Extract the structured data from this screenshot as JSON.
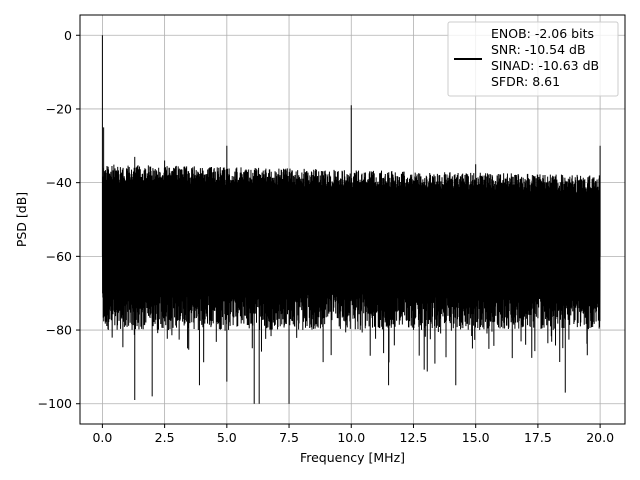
{
  "chart_data": {
    "type": "line",
    "xlabel": "Frequency [MHz]",
    "ylabel": "PSD [dB]",
    "xlim": [
      -0.9,
      21.0
    ],
    "ylim": [
      -105.5,
      5.5
    ],
    "x_ticks": [
      0.0,
      2.5,
      5.0,
      7.5,
      10.0,
      12.5,
      15.0,
      17.5,
      20.0
    ],
    "x_tick_labels": [
      "0.0",
      "2.5",
      "5.0",
      "7.5",
      "10.0",
      "12.5",
      "15.0",
      "17.5",
      "20.0"
    ],
    "y_ticks": [
      0,
      -20,
      -40,
      -60,
      -80,
      -100
    ],
    "y_tick_labels": [
      "0",
      "−20",
      "−40",
      "−60",
      "−80",
      "−100"
    ],
    "grid": true,
    "legend_position": "top-right",
    "series": [
      {
        "name": "ENOB: -2.06 bits\nSNR: -10.54 dB\nSINAD: -10.63 dB\nSFDR: 8.61",
        "color": "#000000",
        "style": "dense noise floor between about -35 dB and -80 dB with downward spikes to about -100 dB",
        "noise_band": {
          "x_start": 0.0,
          "x_end": 20.0,
          "upper_start": -35,
          "upper_end": -38,
          "lower": -80,
          "deep_min": -100
        },
        "peaks": [
          {
            "x": 0.0,
            "y": 0
          },
          {
            "x": 0.05,
            "y": -25
          },
          {
            "x": 1.3,
            "y": -33
          },
          {
            "x": 2.5,
            "y": -34
          },
          {
            "x": 5.0,
            "y": -30
          },
          {
            "x": 10.0,
            "y": -19
          },
          {
            "x": 15.0,
            "y": -35
          },
          {
            "x": 20.0,
            "y": -30
          }
        ],
        "dips": [
          {
            "x": 1.3,
            "y": -99
          },
          {
            "x": 2.0,
            "y": -98
          },
          {
            "x": 3.9,
            "y": -95
          },
          {
            "x": 5.0,
            "y": -94
          },
          {
            "x": 6.1,
            "y": -100
          },
          {
            "x": 6.3,
            "y": -100
          },
          {
            "x": 7.5,
            "y": -100
          },
          {
            "x": 11.5,
            "y": -95
          },
          {
            "x": 14.2,
            "y": -95
          },
          {
            "x": 18.6,
            "y": -97
          }
        ]
      }
    ],
    "legend_lines": [
      "ENOB: -2.06 bits",
      "SNR: -10.54 dB",
      "SINAD: -10.63 dB",
      "SFDR: 8.61"
    ]
  }
}
